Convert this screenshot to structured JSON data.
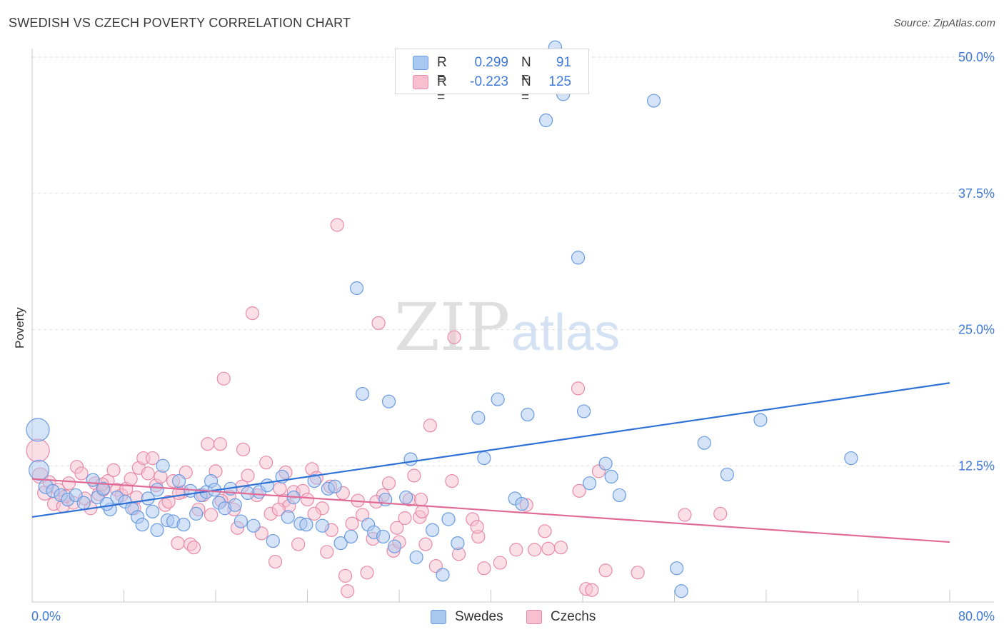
{
  "header": {
    "title": "SWEDISH VS CZECH POVERTY CORRELATION CHART",
    "source": "Source: ZipAtlas.com"
  },
  "watermark": {
    "part1": "ZIP",
    "part2": "atlas"
  },
  "colors": {
    "swedes_fill": "#a9c8f0",
    "swedes_stroke": "#6a9be0",
    "swedes_line": "#2f72d6",
    "czechs_fill": "#f7bfd0",
    "czechs_stroke": "#e88aa9",
    "czechs_line": "#e06b96",
    "tick_label": "#3f7ad8",
    "grid": "#dedede"
  },
  "legend_top": {
    "rows": [
      {
        "series": "Swedes",
        "r_label": "R =",
        "r_value": "0.299",
        "n_label": "N =",
        "n_value": "91"
      },
      {
        "series": "Czechs",
        "r_label": "R =",
        "r_value": "-0.223",
        "n_label": "N =",
        "n_value": "125"
      }
    ]
  },
  "legend_bottom": {
    "items": [
      "Swedes",
      "Czechs"
    ]
  },
  "chart_data": {
    "type": "scatter",
    "title": "SWEDISH VS CZECH POVERTY CORRELATION CHART",
    "xlabel": "",
    "ylabel": "Poverty",
    "xlim": [
      0,
      80
    ],
    "ylim": [
      0,
      50
    ],
    "x_tick_labels": [
      "0.0%",
      "80.0%"
    ],
    "y_ticks": [
      12.5,
      25,
      37.5,
      50
    ],
    "y_tick_labels": [
      "12.5%",
      "25.0%",
      "37.5%",
      "50.0%"
    ],
    "grid": "horizontal dashed",
    "legend": "bottom-center",
    "series": [
      {
        "name": "Swedes",
        "trend": {
          "x": [
            0,
            80
          ],
          "y": [
            7.8,
            20.1
          ]
        },
        "points": [
          [
            0.5,
            15.8,
            16
          ],
          [
            0.6,
            12.1,
            14
          ],
          [
            1.2,
            10.6,
            10
          ],
          [
            1.8,
            10.2,
            9
          ],
          [
            2.5,
            9.8,
            9
          ],
          [
            3.1,
            9.4,
            9
          ],
          [
            3.8,
            9.8,
            9
          ],
          [
            4.5,
            9.1,
            9
          ],
          [
            5.3,
            11.2,
            9
          ],
          [
            5.7,
            9.6,
            9
          ],
          [
            6.2,
            10.4,
            9
          ],
          [
            6.8,
            8.5,
            9
          ],
          [
            7.4,
            9.6,
            9
          ],
          [
            8.1,
            9.2,
            9
          ],
          [
            8.7,
            8.6,
            9
          ],
          [
            9.2,
            7.8,
            9
          ],
          [
            9.6,
            7.1,
            9
          ],
          [
            10.1,
            9.5,
            9
          ],
          [
            10.5,
            8.3,
            9
          ],
          [
            10.9,
            6.6,
            9
          ],
          [
            11.4,
            12.5,
            9
          ],
          [
            11.8,
            7.5,
            9
          ],
          [
            12.3,
            7.4,
            9
          ],
          [
            12.8,
            11.1,
            9
          ],
          [
            13.2,
            7.1,
            9
          ],
          [
            13.8,
            10.2,
            9
          ],
          [
            14.3,
            8.1,
            9
          ],
          [
            14.7,
            9.8,
            9
          ],
          [
            15.2,
            10.1,
            9
          ],
          [
            15.6,
            11.1,
            9
          ],
          [
            16.3,
            9.1,
            9
          ],
          [
            16.8,
            8.6,
            9
          ],
          [
            17.3,
            10.4,
            9
          ],
          [
            17.7,
            8.9,
            9
          ],
          [
            18.2,
            7.4,
            9
          ],
          [
            18.8,
            10.0,
            9
          ],
          [
            19.3,
            7.0,
            9
          ],
          [
            19.8,
            10.1,
            9
          ],
          [
            20.5,
            10.7,
            9
          ],
          [
            21.0,
            5.6,
            9
          ],
          [
            21.8,
            11.5,
            9
          ],
          [
            22.3,
            7.8,
            9
          ],
          [
            22.8,
            9.6,
            9
          ],
          [
            23.4,
            7.2,
            9
          ],
          [
            23.9,
            7.1,
            9
          ],
          [
            24.6,
            11.1,
            9
          ],
          [
            25.8,
            10.4,
            9
          ],
          [
            26.4,
            10.6,
            9
          ],
          [
            26.9,
            5.4,
            9
          ],
          [
            27.8,
            6.0,
            9
          ],
          [
            28.3,
            28.8,
            9
          ],
          [
            28.8,
            19.1,
            9
          ],
          [
            29.3,
            7.1,
            9
          ],
          [
            29.8,
            6.4,
            9
          ],
          [
            30.6,
            6.0,
            9
          ],
          [
            31.1,
            18.4,
            9
          ],
          [
            31.6,
            5.1,
            9
          ],
          [
            32.6,
            9.6,
            9
          ],
          [
            33.0,
            13.1,
            9
          ],
          [
            33.5,
            4.1,
            9
          ],
          [
            34.9,
            6.6,
            9
          ],
          [
            35.8,
            2.5,
            9
          ],
          [
            36.3,
            7.6,
            9
          ],
          [
            37.1,
            5.4,
            9
          ],
          [
            38.9,
            16.9,
            9
          ],
          [
            39.4,
            13.2,
            9
          ],
          [
            40.6,
            18.6,
            9
          ],
          [
            42.1,
            9.5,
            9
          ],
          [
            42.7,
            9.0,
            9
          ],
          [
            43.2,
            17.2,
            9
          ],
          [
            44.8,
            44.2,
            9
          ],
          [
            45.6,
            50.9,
            9
          ],
          [
            46.3,
            46.6,
            9
          ],
          [
            47.6,
            31.6,
            9
          ],
          [
            48.1,
            17.5,
            9
          ],
          [
            48.6,
            10.9,
            9
          ],
          [
            50.0,
            12.7,
            9
          ],
          [
            50.5,
            11.5,
            9
          ],
          [
            51.2,
            9.8,
            9
          ],
          [
            54.2,
            46.0,
            9
          ],
          [
            56.2,
            3.1,
            9
          ],
          [
            56.6,
            1.0,
            9
          ],
          [
            58.6,
            14.6,
            9
          ],
          [
            60.6,
            11.7,
            9
          ],
          [
            63.5,
            16.7,
            9
          ],
          [
            71.4,
            13.2,
            9
          ],
          [
            30.8,
            9.4,
            9
          ],
          [
            25.3,
            7.0,
            9
          ],
          [
            15.9,
            10.3,
            9
          ],
          [
            6.5,
            9.0,
            9
          ],
          [
            10.9,
            10.3,
            9
          ]
        ]
      },
      {
        "name": "Czechs",
        "trend": {
          "x": [
            0,
            80
          ],
          "y": [
            11.3,
            5.5
          ]
        },
        "points": [
          [
            0.5,
            13.9,
            16
          ],
          [
            0.7,
            11.6,
            11
          ],
          [
            1.1,
            10.0,
            10
          ],
          [
            1.5,
            11.0,
            9
          ],
          [
            1.9,
            9.0,
            9
          ],
          [
            2.3,
            10.3,
            9
          ],
          [
            2.7,
            8.8,
            9
          ],
          [
            3.2,
            10.9,
            9
          ],
          [
            3.6,
            9.1,
            9
          ],
          [
            3.9,
            12.4,
            9
          ],
          [
            4.3,
            11.8,
            9
          ],
          [
            4.6,
            9.5,
            9
          ],
          [
            5.1,
            8.6,
            9
          ],
          [
            5.5,
            10.9,
            9
          ],
          [
            5.8,
            9.9,
            9
          ],
          [
            6.2,
            10.3,
            9
          ],
          [
            6.6,
            11.1,
            9
          ],
          [
            7.1,
            12.1,
            9
          ],
          [
            7.4,
            10.3,
            9
          ],
          [
            7.8,
            9.8,
            9
          ],
          [
            8.2,
            10.4,
            9
          ],
          [
            8.6,
            11.3,
            9
          ],
          [
            8.9,
            8.6,
            9
          ],
          [
            9.3,
            12.3,
            9
          ],
          [
            9.7,
            13.2,
            9
          ],
          [
            10.1,
            11.8,
            9
          ],
          [
            10.5,
            13.2,
            9
          ],
          [
            10.8,
            10.7,
            9
          ],
          [
            11.2,
            11.5,
            9
          ],
          [
            11.6,
            8.9,
            9
          ],
          [
            11.9,
            9.2,
            9
          ],
          [
            12.3,
            11.1,
            9
          ],
          [
            12.7,
            5.4,
            9
          ],
          [
            13.1,
            10.1,
            9
          ],
          [
            13.4,
            11.9,
            9
          ],
          [
            13.8,
            5.3,
            9
          ],
          [
            14.1,
            5.0,
            9
          ],
          [
            14.5,
            8.5,
            9
          ],
          [
            14.9,
            9.8,
            9
          ],
          [
            15.3,
            14.5,
            9
          ],
          [
            15.6,
            8.0,
            9
          ],
          [
            16.0,
            12.0,
            9
          ],
          [
            16.4,
            14.5,
            9
          ],
          [
            16.7,
            20.5,
            9
          ],
          [
            17.2,
            9.7,
            9
          ],
          [
            17.6,
            8.5,
            9
          ],
          [
            17.9,
            6.8,
            9
          ],
          [
            18.4,
            14.0,
            9
          ],
          [
            18.8,
            11.6,
            9
          ],
          [
            19.2,
            26.5,
            9
          ],
          [
            19.6,
            9.8,
            9
          ],
          [
            20.0,
            6.3,
            9
          ],
          [
            20.4,
            12.8,
            9
          ],
          [
            20.8,
            8.1,
            9
          ],
          [
            21.2,
            3.7,
            9
          ],
          [
            21.6,
            10.4,
            9
          ],
          [
            22.0,
            9.3,
            9
          ],
          [
            22.4,
            8.8,
            9
          ],
          [
            22.8,
            10.1,
            9
          ],
          [
            23.2,
            5.3,
            9
          ],
          [
            23.6,
            10.2,
            9
          ],
          [
            24.0,
            9.4,
            9
          ],
          [
            24.4,
            12.2,
            9
          ],
          [
            24.8,
            11.4,
            9
          ],
          [
            25.3,
            8.6,
            9
          ],
          [
            25.7,
            4.6,
            9
          ],
          [
            26.1,
            6.6,
            9
          ],
          [
            26.6,
            34.6,
            9
          ],
          [
            27.1,
            10.0,
            9
          ],
          [
            27.5,
            1.0,
            9
          ],
          [
            27.9,
            7.2,
            9
          ],
          [
            28.4,
            9.3,
            9
          ],
          [
            28.8,
            8.0,
            9
          ],
          [
            29.2,
            2.7,
            9
          ],
          [
            29.7,
            5.8,
            9
          ],
          [
            30.2,
            25.6,
            9
          ],
          [
            30.6,
            9.8,
            9
          ],
          [
            31.1,
            10.9,
            9
          ],
          [
            31.5,
            4.7,
            9
          ],
          [
            32.0,
            5.5,
            9
          ],
          [
            32.5,
            7.7,
            9
          ],
          [
            32.9,
            9.4,
            9
          ],
          [
            33.3,
            11.6,
            9
          ],
          [
            33.8,
            7.8,
            9
          ],
          [
            34.3,
            5.3,
            9
          ],
          [
            34.7,
            16.2,
            9
          ],
          [
            35.2,
            3.3,
            9
          ],
          [
            36.6,
            11.1,
            9
          ],
          [
            37.2,
            4.4,
            9
          ],
          [
            38.4,
            7.6,
            9
          ],
          [
            38.9,
            6.0,
            9
          ],
          [
            39.4,
            3.1,
            9
          ],
          [
            40.8,
            3.6,
            9
          ],
          [
            42.2,
            4.8,
            9
          ],
          [
            43.8,
            4.8,
            9
          ],
          [
            44.7,
            6.5,
            9
          ],
          [
            47.6,
            19.6,
            9
          ],
          [
            48.3,
            1.2,
            9
          ],
          [
            50.0,
            2.9,
            9
          ],
          [
            52.8,
            2.7,
            9
          ],
          [
            56.9,
            8.0,
            9
          ],
          [
            60.0,
            8.1,
            9
          ],
          [
            36.8,
            24.3,
            9
          ],
          [
            30.0,
            9.2,
            9
          ],
          [
            22.1,
            11.9,
            9
          ],
          [
            26.0,
            10.6,
            9
          ],
          [
            31.8,
            6.8,
            9
          ],
          [
            34.0,
            8.3,
            9
          ],
          [
            38.8,
            6.9,
            9
          ],
          [
            45.0,
            4.9,
            9
          ],
          [
            46.1,
            5.0,
            9
          ],
          [
            47.7,
            10.2,
            9
          ],
          [
            49.4,
            12.0,
            9
          ],
          [
            43.1,
            8.9,
            9
          ],
          [
            24.6,
            8.1,
            9
          ],
          [
            18.3,
            10.6,
            9
          ],
          [
            12.8,
            10.0,
            9
          ],
          [
            9.1,
            9.6,
            9
          ],
          [
            6.1,
            10.8,
            9
          ],
          [
            2.9,
            9.7,
            9
          ],
          [
            16.5,
            9.3,
            9
          ],
          [
            21.5,
            8.5,
            9
          ],
          [
            27.3,
            2.4,
            9
          ],
          [
            33.9,
            9.4,
            9
          ],
          [
            48.8,
            1.1,
            9
          ]
        ]
      }
    ]
  }
}
